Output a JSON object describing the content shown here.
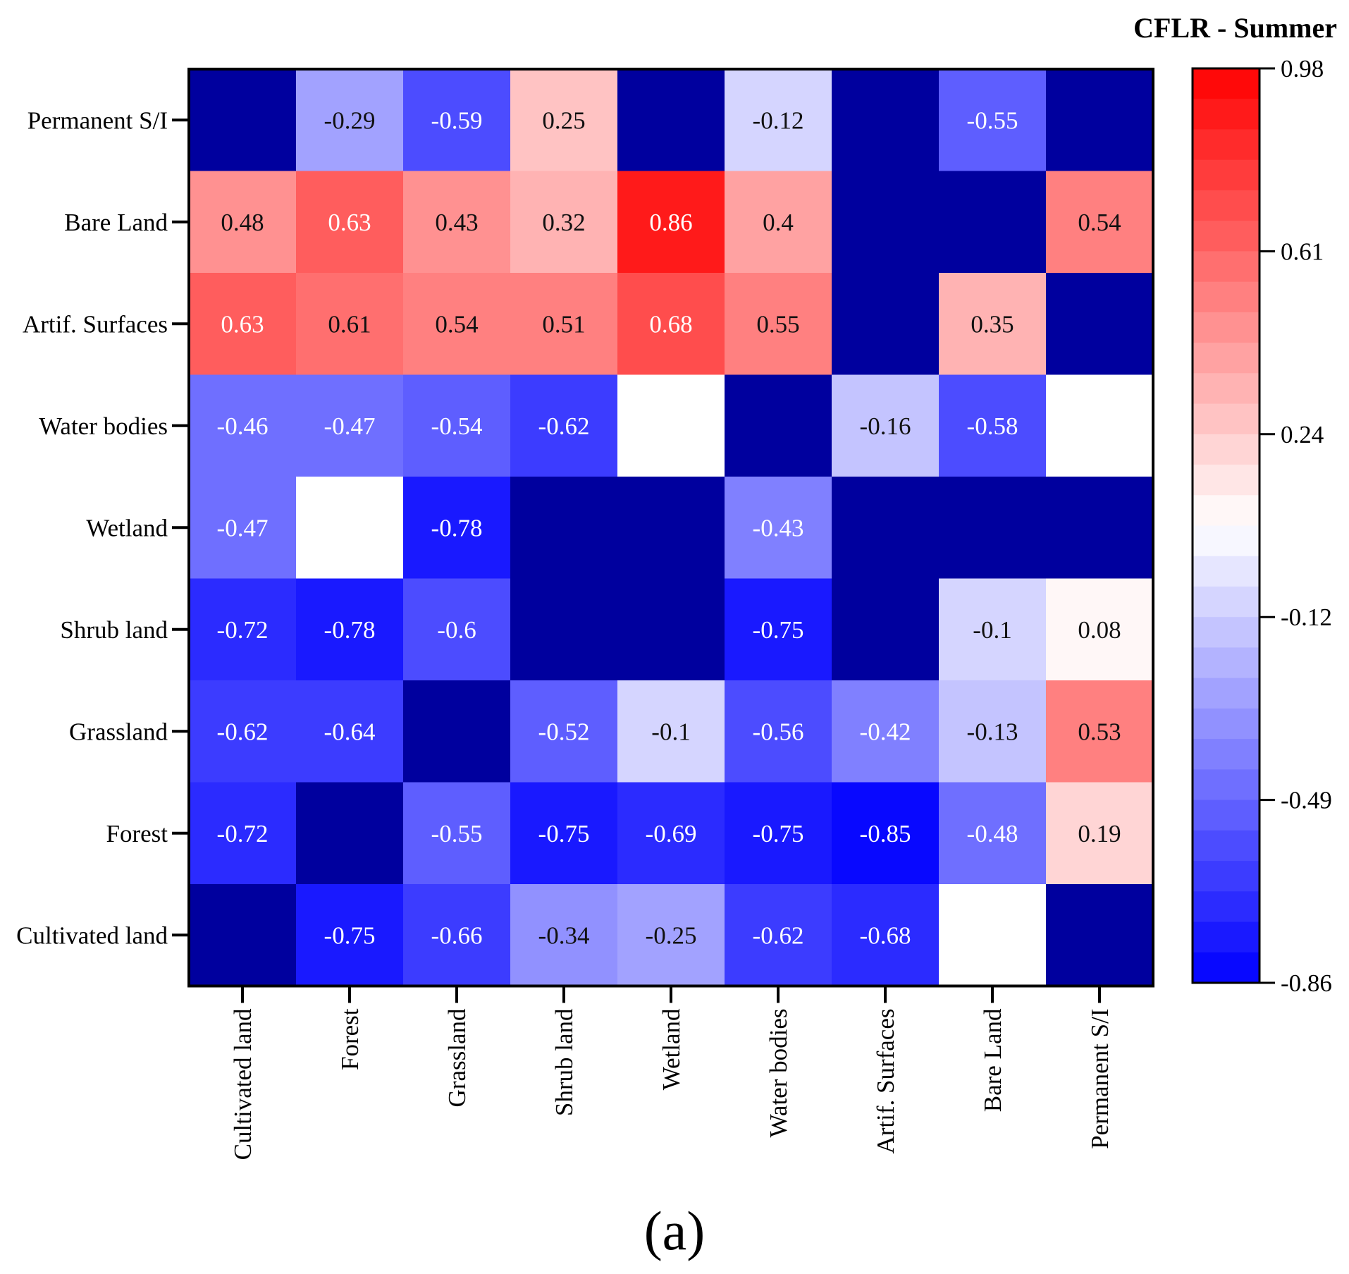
{
  "chart_data": {
    "type": "heatmap",
    "title": "CFLR - Summer",
    "panel_label": "(a)",
    "x_categories": [
      "Cultivated land",
      "Forest",
      "Grassland",
      "Shrub land",
      "Wetland",
      "Water bodies",
      "Artif. Surfaces",
      "Bare Land",
      "Permanent S/I"
    ],
    "y_categories": [
      "Permanent S/I",
      "Bare Land",
      "Artif. Surfaces",
      "Water bodies",
      "Wetland",
      "Shrub land",
      "Grassland",
      "Forest",
      "Cultivated land"
    ],
    "values": [
      [
        null,
        -0.29,
        -0.59,
        0.25,
        null,
        -0.12,
        null,
        -0.55,
        null
      ],
      [
        0.48,
        0.63,
        0.43,
        0.32,
        0.86,
        0.4,
        null,
        null,
        0.54
      ],
      [
        0.63,
        0.61,
        0.54,
        0.51,
        0.68,
        0.55,
        null,
        0.35,
        null
      ],
      [
        -0.46,
        -0.47,
        -0.54,
        -0.62,
        "empty",
        null,
        -0.16,
        -0.58,
        "empty"
      ],
      [
        -0.47,
        "empty",
        -0.78,
        null,
        null,
        -0.43,
        null,
        null,
        null
      ],
      [
        -0.72,
        -0.78,
        -0.6,
        null,
        null,
        -0.75,
        null,
        -0.1,
        0.08
      ],
      [
        -0.62,
        -0.64,
        null,
        -0.52,
        -0.1,
        -0.56,
        -0.42,
        -0.13,
        0.53
      ],
      [
        -0.72,
        null,
        -0.55,
        -0.75,
        -0.69,
        -0.75,
        -0.85,
        -0.48,
        0.19
      ],
      [
        null,
        -0.75,
        -0.66,
        -0.34,
        -0.25,
        -0.62,
        -0.68,
        "empty",
        null
      ]
    ],
    "colorbar": {
      "min": -0.86,
      "max": 0.98,
      "ticks": [
        "0.98",
        "0.61",
        "0.24",
        "-0.12",
        "-0.49",
        "-0.86"
      ],
      "steps": 30,
      "low_color": "#0000ff",
      "mid_color": "#ffffff",
      "high_color": "#ff0000",
      "mid_value": 0.06
    },
    "missing_color": "#00009e",
    "empty_color": "#ffffff"
  }
}
